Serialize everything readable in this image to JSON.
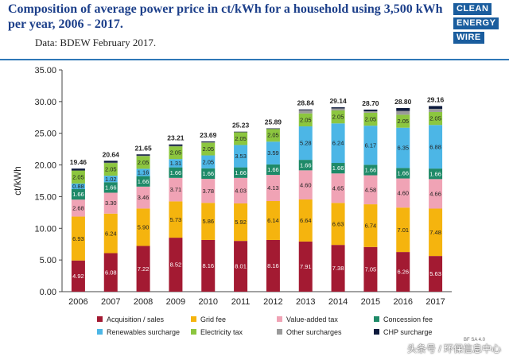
{
  "header": {
    "title": "Composition of average power price in ct/kWh for a household using 3,500 kWh per year, 2006 - 2017.",
    "subtitle": "Data: BDEW February 2017.",
    "logo_lines": [
      "CLEAN",
      "ENERGY",
      "WIRE"
    ]
  },
  "watermark": "头条号 / 环保信息中心",
  "source_tag": "BF SA 4.0",
  "chart_data": {
    "type": "bar",
    "stacked": true,
    "title": "Composition of average power price in ct/kWh for a household using 3,500 kWh per year, 2006 - 2017.",
    "xlabel": "",
    "ylabel": "ct/kWh",
    "ylim": [
      0,
      35
    ],
    "yticks": [
      "0.00",
      "5.00",
      "10.00",
      "15.00",
      "20.00",
      "25.00",
      "30.00",
      "35.00"
    ],
    "grid": false,
    "legend_position": "bottom",
    "categories": [
      "2006",
      "2007",
      "2008",
      "2009",
      "2010",
      "2011",
      "2012",
      "2013",
      "2014",
      "2015",
      "2016",
      "2017"
    ],
    "totals": [
      "19.46",
      "20.64",
      "21.65",
      "23.21",
      "23.69",
      "25.23",
      "25.89",
      "28.84",
      "29.14",
      "28.70",
      "28.80",
      "29.16"
    ],
    "series": [
      {
        "name": "Acquisition / sales",
        "color": "#a31a32",
        "values": [
          4.92,
          6.08,
          7.22,
          8.52,
          8.16,
          8.01,
          8.16,
          7.91,
          7.38,
          7.05,
          6.26,
          5.63
        ],
        "labels": [
          "4.92",
          "6.08",
          "7.22",
          "8.52",
          "8.16",
          "8.01",
          "8.16",
          "7.91",
          "7.38",
          "7.05",
          "6.26",
          "5.63"
        ]
      },
      {
        "name": "Grid fee",
        "color": "#f5b40e",
        "values": [
          6.93,
          6.24,
          5.9,
          5.73,
          5.86,
          5.92,
          6.14,
          6.64,
          6.63,
          6.74,
          7.01,
          7.48
        ],
        "labels": [
          "6.93",
          "6.24",
          "5.90",
          "5.73",
          "5.86",
          "5.92",
          "6.14",
          "6.64",
          "6.63",
          "6.74",
          "7.01",
          "7.48"
        ]
      },
      {
        "name": "Value-added tax",
        "color": "#f0a3b5",
        "values": [
          2.68,
          3.3,
          3.46,
          3.71,
          3.78,
          4.03,
          4.13,
          4.6,
          4.65,
          4.58,
          4.6,
          4.66
        ],
        "labels": [
          "2.68",
          "3.30",
          "3.46",
          "3.71",
          "3.78",
          "4.03",
          "4.13",
          "4.60",
          "4.65",
          "4.58",
          "4.60",
          "4.66"
        ]
      },
      {
        "name": "Concession fee",
        "color": "#1e8a68",
        "values": [
          1.66,
          1.66,
          1.66,
          1.66,
          1.66,
          1.66,
          1.66,
          1.66,
          1.66,
          1.66,
          1.66,
          1.66
        ],
        "labels": [
          "1.66",
          "1.66",
          "1.66",
          "1.66",
          "1.66",
          "1.66",
          "1.66",
          "1.66",
          "1.66",
          "1.66",
          "1.66",
          "1.66"
        ]
      },
      {
        "name": "Renewables surcharge",
        "color": "#4cb6e6",
        "values": [
          0.88,
          1.02,
          1.16,
          1.31,
          2.05,
          3.53,
          3.59,
          5.28,
          6.24,
          6.17,
          6.35,
          6.88
        ],
        "labels": [
          "0.88",
          "1.02",
          "1.16",
          "1.31",
          "2.05",
          "3.53",
          "3.59",
          "5.28",
          "6.24",
          "6.17",
          "6.35",
          "6.88"
        ]
      },
      {
        "name": "Electricity tax",
        "color": "#8cc63f",
        "values": [
          2.05,
          2.05,
          2.05,
          2.05,
          2.05,
          2.05,
          2.05,
          2.05,
          2.05,
          2.05,
          2.05,
          2.05
        ],
        "labels": [
          "2.05",
          "2.05",
          "2.05",
          "2.05",
          "2.05",
          "2.05",
          "2.05",
          "2.05",
          "2.05",
          "2.05",
          "2.05",
          "2.05"
        ]
      },
      {
        "name": "Other surcharges",
        "color": "#9a9a9a",
        "values": [
          0.0,
          0.02,
          0.02,
          0.02,
          0.02,
          0.02,
          0.02,
          0.5,
          0.31,
          0.24,
          0.6,
          0.5
        ],
        "labels": [
          "",
          "",
          "",
          "",
          "",
          "",
          "",
          "",
          "",
          "",
          "",
          ""
        ]
      },
      {
        "name": "CHP surcharge",
        "color": "#0d1a3c",
        "values": [
          0.31,
          0.29,
          0.2,
          0.24,
          0.13,
          0.03,
          0.02,
          0.13,
          0.18,
          0.25,
          0.45,
          0.44
        ],
        "labels": [
          "",
          "",
          "",
          "",
          "",
          "",
          "",
          "",
          "",
          "",
          "",
          ""
        ]
      }
    ]
  }
}
